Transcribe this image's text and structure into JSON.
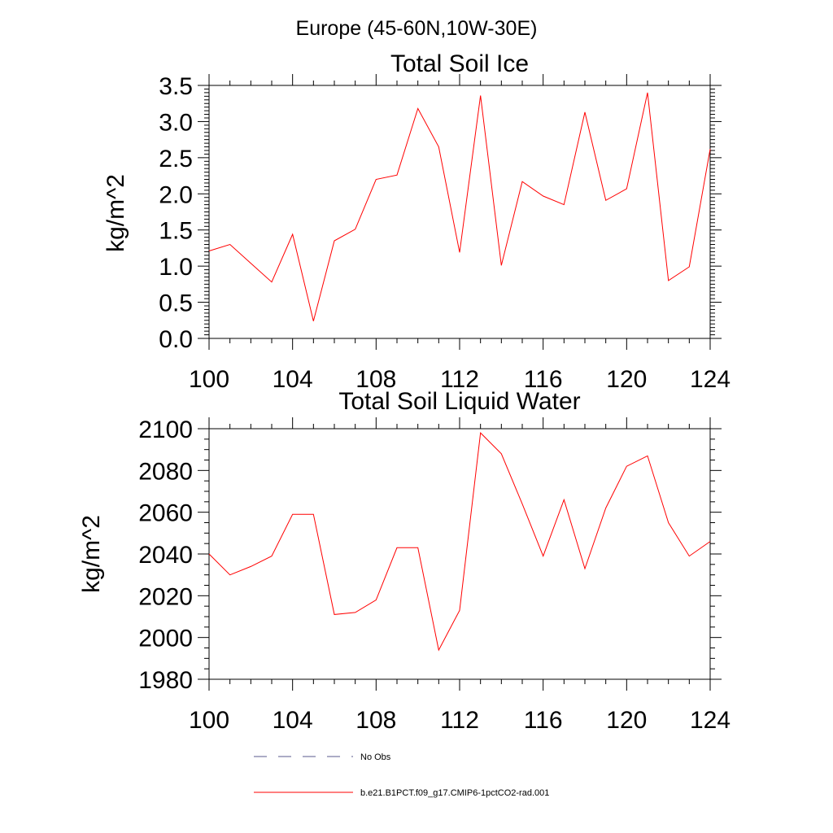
{
  "figure": {
    "title": "Europe (45-60N,10W-30E)"
  },
  "chart_data": [
    {
      "type": "line",
      "title": "Total Soil Ice",
      "xlabel": "",
      "ylabel": "kg/m^2",
      "xlim": [
        100,
        124
      ],
      "ylim": [
        0,
        3.5
      ],
      "xticks": [
        100,
        104,
        108,
        112,
        116,
        120,
        124
      ],
      "xtick_labels": [
        "100",
        "104",
        "108",
        "112",
        "116",
        "120",
        "124"
      ],
      "yticks": [
        0,
        0.5,
        1,
        1.5,
        2,
        2.5,
        3,
        3.5
      ],
      "ytick_labels": [
        "0.0",
        "0.5",
        "1.0",
        "1.5",
        "2.0",
        "2.5",
        "3.0",
        "3.5"
      ],
      "grid": false,
      "x": [
        100,
        101,
        102,
        103,
        104,
        105,
        106,
        107,
        108,
        109,
        110,
        111,
        112,
        113,
        114,
        115,
        116,
        117,
        118,
        119,
        120,
        121,
        122,
        123,
        124
      ],
      "series": [
        {
          "name": "b.e21.B1PCT.f09_g17.CMIP6-1pctCO2-rad.001",
          "color": "#ff0000",
          "values": [
            1.21,
            1.3,
            1.04,
            0.78,
            1.44,
            0.24,
            1.35,
            1.51,
            2.2,
            2.26,
            3.18,
            2.65,
            1.19,
            3.36,
            1.01,
            2.17,
            1.97,
            1.85,
            3.13,
            1.91,
            2.07,
            3.4,
            0.8,
            0.99,
            2.62
          ]
        }
      ]
    },
    {
      "type": "line",
      "title": "Total Soil Liquid Water",
      "xlabel": "",
      "ylabel": "kg/m^2",
      "xlim": [
        100,
        124
      ],
      "ylim": [
        1980,
        2100
      ],
      "xticks": [
        100,
        104,
        108,
        112,
        116,
        120,
        124
      ],
      "xtick_labels": [
        "100",
        "104",
        "108",
        "112",
        "116",
        "120",
        "124"
      ],
      "yticks": [
        1980,
        2000,
        2020,
        2040,
        2060,
        2080,
        2100
      ],
      "ytick_labels": [
        "1980",
        "2000",
        "2020",
        "2040",
        "2060",
        "2080",
        "2100"
      ],
      "grid": false,
      "x": [
        100,
        101,
        102,
        103,
        104,
        105,
        106,
        107,
        108,
        109,
        110,
        111,
        112,
        113,
        114,
        115,
        116,
        117,
        118,
        119,
        120,
        121,
        122,
        123,
        124
      ],
      "series": [
        {
          "name": "b.e21.B1PCT.f09_g17.CMIP6-1pctCO2-rad.001",
          "color": "#ff0000",
          "values": [
            2040,
            2030,
            2034,
            2039,
            2059,
            2059,
            2011,
            2012,
            2018,
            2043,
            2043,
            1994,
            2013,
            2098,
            2088,
            2064,
            2039,
            2066,
            2033,
            2062,
            2082,
            2087,
            2055,
            2039,
            2046
          ]
        }
      ]
    }
  ],
  "legend": {
    "placement": "bottom",
    "entries": [
      {
        "label": "No Obs",
        "style": "dashed",
        "color": "#5a5a8c"
      },
      {
        "label": "b.e21.B1PCT.f09_g17.CMIP6-1pctCO2-rad.001",
        "style": "solid",
        "color": "#ff0000"
      }
    ]
  }
}
